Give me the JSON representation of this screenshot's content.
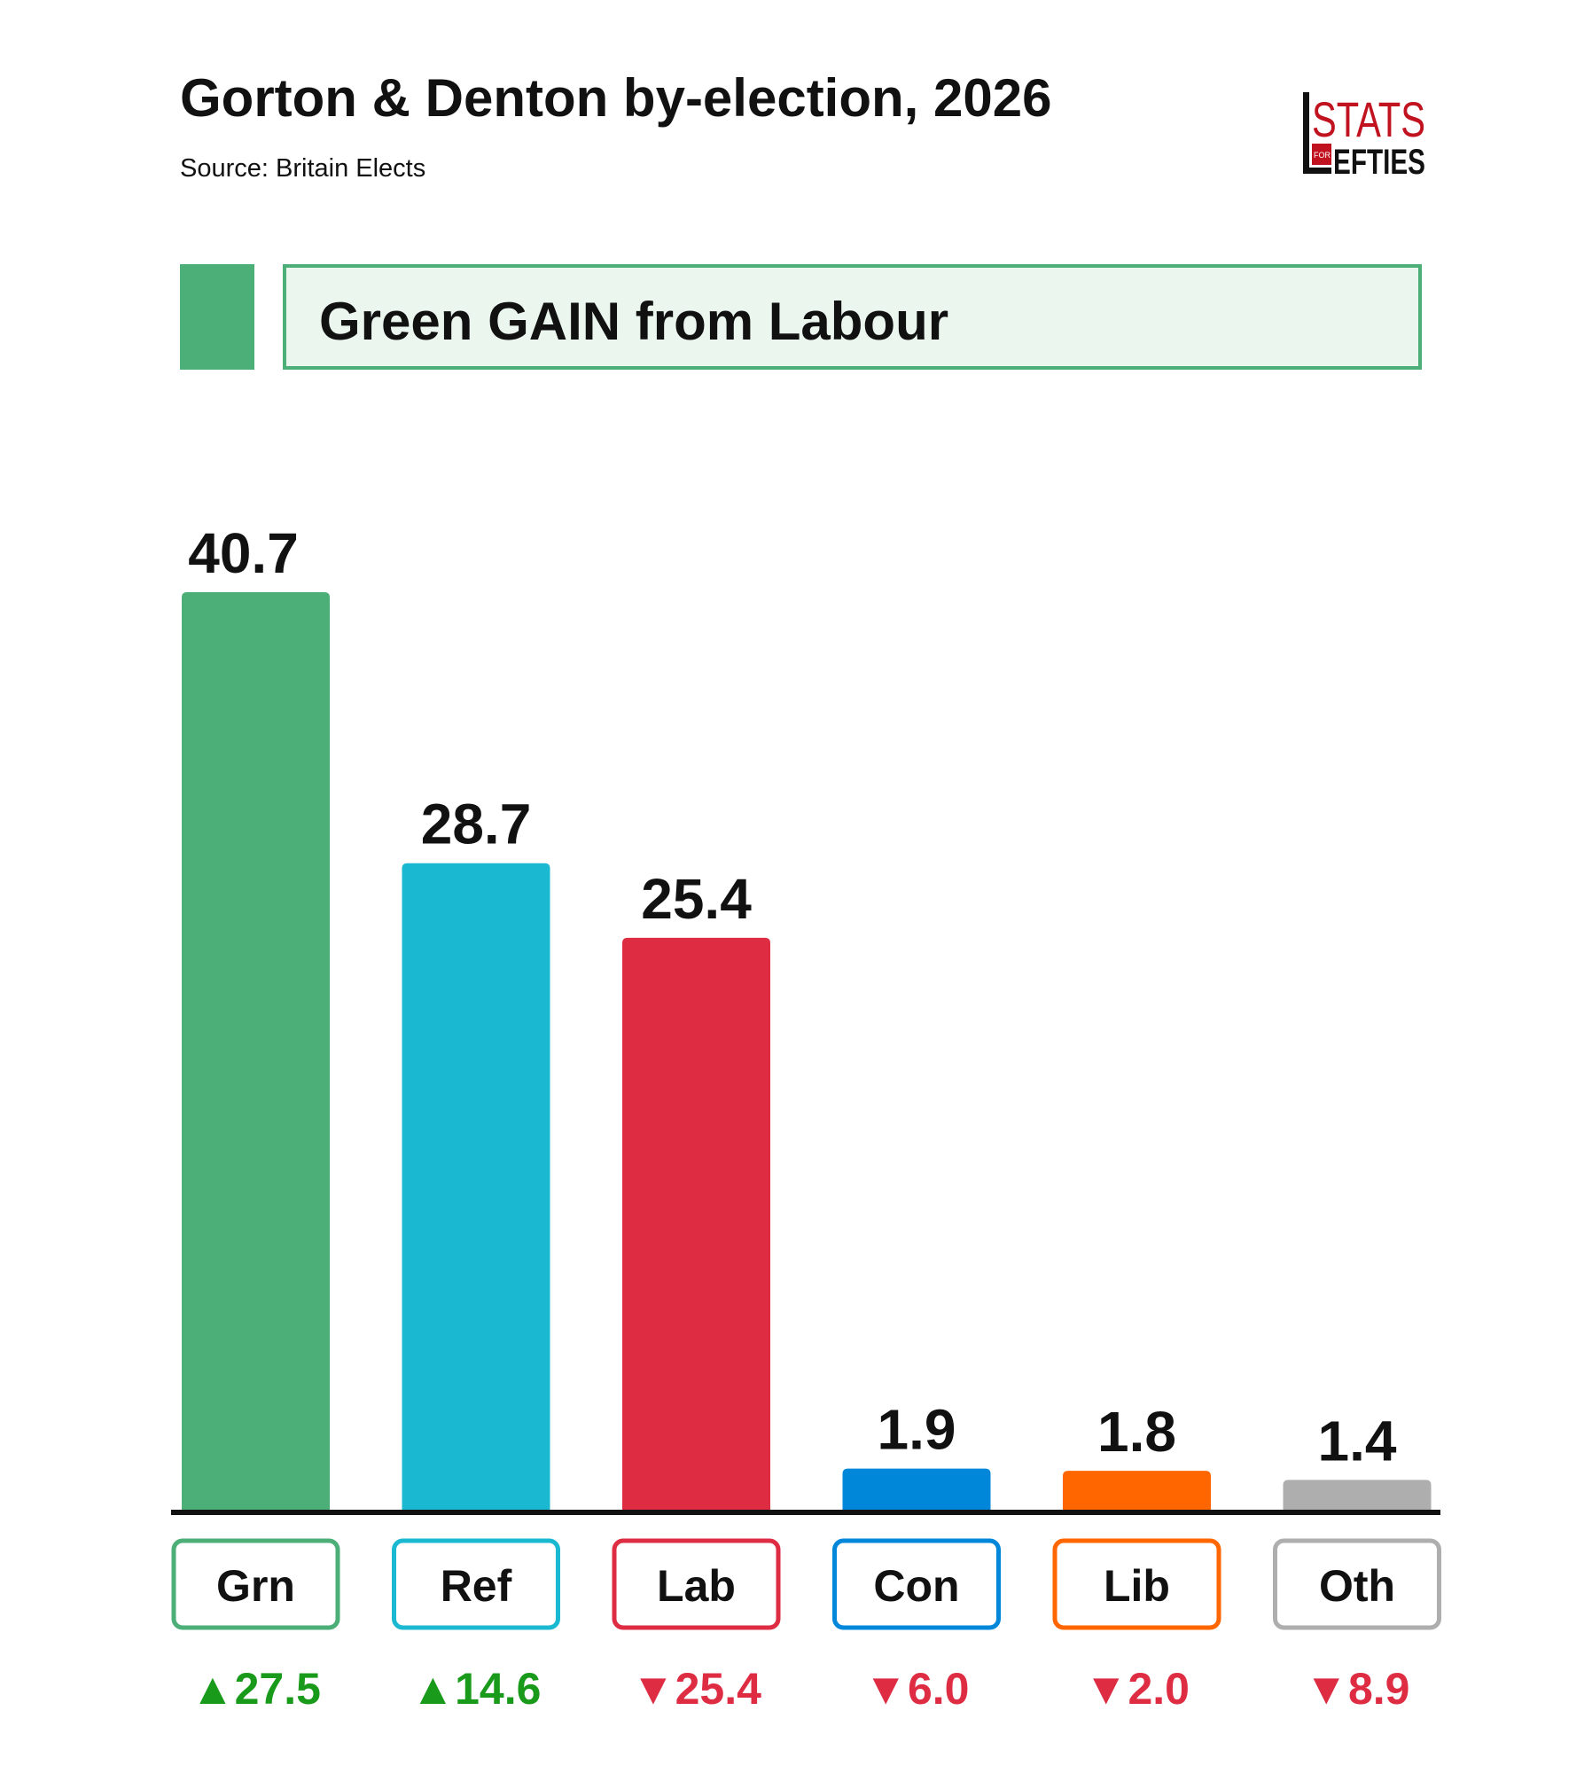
{
  "header": {
    "title": "Gorton & Denton by-election, 2026",
    "source": "Source: Britain Elects",
    "logo_text": "STATS FOR LEFTIES"
  },
  "banner": {
    "text": "Green GAIN from Labour",
    "color": "#4caf78"
  },
  "chart_data": {
    "type": "bar",
    "title": "Gorton & Denton by-election, 2026",
    "categories": [
      "Grn",
      "Ref",
      "Lab",
      "Con",
      "Lib",
      "Oth"
    ],
    "values": [
      40.7,
      28.7,
      25.4,
      1.9,
      1.8,
      1.4
    ],
    "value_labels": [
      "40.7",
      "28.7",
      "25.4",
      "1.9",
      "1.8",
      "1.4"
    ],
    "changes": [
      27.5,
      14.6,
      -25.4,
      -6.0,
      -2.0,
      -8.9
    ],
    "change_labels": [
      "27.5",
      "14.6",
      "25.4",
      "6.0",
      "2.0",
      "8.9"
    ],
    "colors": [
      "#4caf78",
      "#1bb8d2",
      "#de2d43",
      "#0087da",
      "#ff6600",
      "#aeaeae"
    ],
    "change_colors": {
      "up": "#1a9a1a",
      "down": "#de2d43"
    },
    "ylim": [
      0,
      40.7
    ],
    "grid": false
  }
}
